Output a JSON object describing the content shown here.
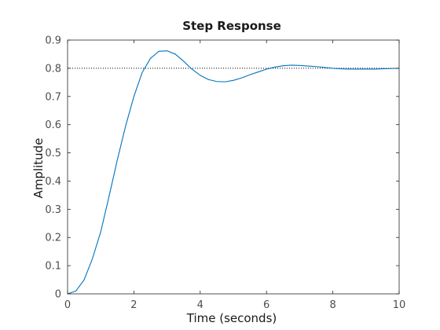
{
  "chart_data": {
    "type": "line",
    "title": "Step Response",
    "xlabel": "Time (seconds)",
    "ylabel": "Amplitude",
    "xlim": [
      0,
      10
    ],
    "ylim": [
      0,
      0.9
    ],
    "xticks": [
      0,
      2,
      4,
      6,
      8,
      10
    ],
    "yticks": [
      0,
      0.1,
      0.2,
      0.3,
      0.4,
      0.5,
      0.6,
      0.7,
      0.8,
      0.9
    ],
    "grid": false,
    "reference_line": {
      "y": 0.8,
      "style": "dotted",
      "color": "#000000"
    },
    "series": [
      {
        "color": "#0072bd",
        "x": [
          0,
          0.25,
          0.5,
          0.75,
          1.0,
          1.25,
          1.5,
          1.75,
          2.0,
          2.25,
          2.5,
          2.75,
          3.0,
          3.25,
          3.5,
          3.75,
          4.0,
          4.25,
          4.5,
          4.75,
          5.0,
          5.25,
          5.5,
          5.75,
          6.0,
          6.25,
          6.5,
          6.75,
          7.0,
          7.25,
          7.5,
          7.75,
          8.0,
          8.25,
          8.5,
          8.75,
          9.0,
          9.25,
          9.5,
          9.75,
          10.0
        ],
        "y": [
          0,
          0.01,
          0.05,
          0.125,
          0.22,
          0.345,
          0.475,
          0.595,
          0.7,
          0.785,
          0.835,
          0.86,
          0.862,
          0.85,
          0.825,
          0.797,
          0.775,
          0.76,
          0.753,
          0.752,
          0.757,
          0.766,
          0.777,
          0.787,
          0.797,
          0.804,
          0.809,
          0.811,
          0.81,
          0.808,
          0.806,
          0.803,
          0.8,
          0.798,
          0.797,
          0.797,
          0.797,
          0.797,
          0.798,
          0.799,
          0.8
        ]
      }
    ]
  }
}
